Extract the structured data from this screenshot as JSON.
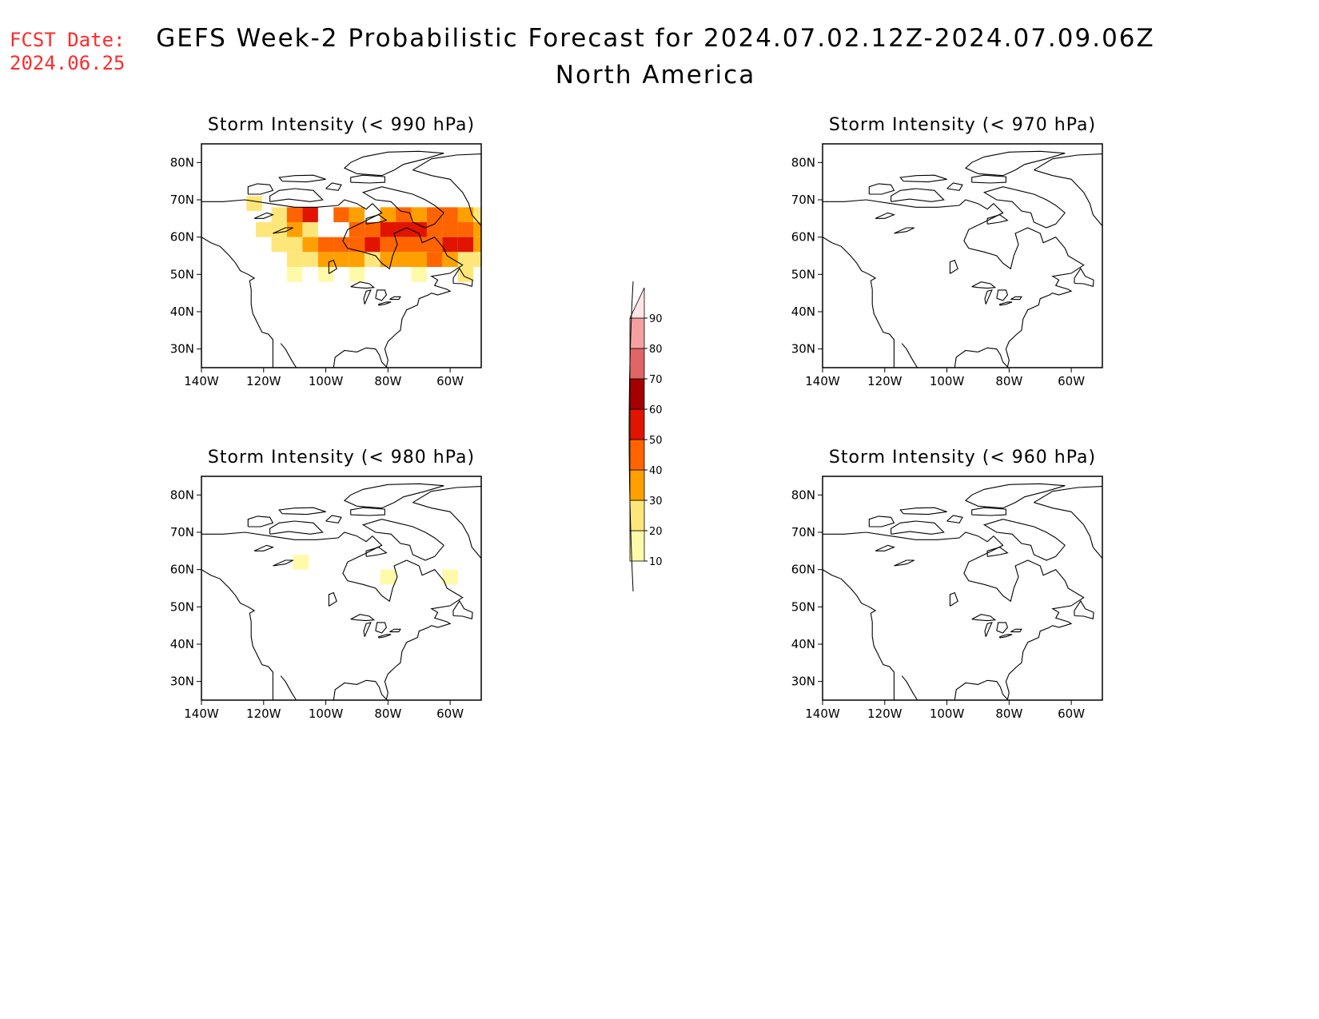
{
  "forecast_date": {
    "label": "FCST Date:",
    "value": "2024.06.25"
  },
  "title": "GEFS Week-2 Probabilistic Forecast for 2024.07.02.12Z-2024.07.09.06Z",
  "subtitle": "North America",
  "map": {
    "lon_ticks": [
      "140W",
      "120W",
      "100W",
      "80W",
      "60W"
    ],
    "lat_ticks": [
      "80N",
      "70N",
      "60N",
      "50N",
      "40N",
      "30N"
    ],
    "lon_range": [
      -140,
      -50
    ],
    "lat_range": [
      25,
      85
    ]
  },
  "panels": [
    {
      "id": "990",
      "title": "Storm Intensity (< 990 hPa)",
      "cells": [
        {
          "lat": 69,
          "lon": -123,
          "p": 25
        },
        {
          "lat": 66,
          "lon": -115,
          "p": 20
        },
        {
          "lat": 66,
          "lon": -110,
          "p": 45
        },
        {
          "lat": 66,
          "lon": -105,
          "p": 55
        },
        {
          "lat": 66,
          "lon": -95,
          "p": 45
        },
        {
          "lat": 66,
          "lon": -90,
          "p": 35
        },
        {
          "lat": 66,
          "lon": -80,
          "p": 35
        },
        {
          "lat": 66,
          "lon": -75,
          "p": 45
        },
        {
          "lat": 66,
          "lon": -70,
          "p": 35
        },
        {
          "lat": 66,
          "lon": -65,
          "p": 45
        },
        {
          "lat": 66,
          "lon": -60,
          "p": 45
        },
        {
          "lat": 66,
          "lon": -55,
          "p": 35
        },
        {
          "lat": 66,
          "lon": -50,
          "p": 25
        },
        {
          "lat": 62,
          "lon": -120,
          "p": 20
        },
        {
          "lat": 62,
          "lon": -115,
          "p": 25
        },
        {
          "lat": 62,
          "lon": -110,
          "p": 35
        },
        {
          "lat": 62,
          "lon": -105,
          "p": 25
        },
        {
          "lat": 62,
          "lon": -90,
          "p": 45
        },
        {
          "lat": 62,
          "lon": -85,
          "p": 45
        },
        {
          "lat": 62,
          "lon": -80,
          "p": 55
        },
        {
          "lat": 62,
          "lon": -75,
          "p": 55
        },
        {
          "lat": 62,
          "lon": -70,
          "p": 55
        },
        {
          "lat": 62,
          "lon": -65,
          "p": 45
        },
        {
          "lat": 62,
          "lon": -60,
          "p": 45
        },
        {
          "lat": 62,
          "lon": -55,
          "p": 45
        },
        {
          "lat": 62,
          "lon": -50,
          "p": 35
        },
        {
          "lat": 58,
          "lon": -115,
          "p": 20
        },
        {
          "lat": 58,
          "lon": -110,
          "p": 25
        },
        {
          "lat": 58,
          "lon": -105,
          "p": 35
        },
        {
          "lat": 58,
          "lon": -100,
          "p": 45
        },
        {
          "lat": 58,
          "lon": -95,
          "p": 45
        },
        {
          "lat": 58,
          "lon": -90,
          "p": 45
        },
        {
          "lat": 58,
          "lon": -85,
          "p": 55
        },
        {
          "lat": 58,
          "lon": -80,
          "p": 45
        },
        {
          "lat": 58,
          "lon": -75,
          "p": 45
        },
        {
          "lat": 58,
          "lon": -70,
          "p": 45
        },
        {
          "lat": 58,
          "lon": -65,
          "p": 45
        },
        {
          "lat": 58,
          "lon": -60,
          "p": 55
        },
        {
          "lat": 58,
          "lon": -55,
          "p": 55
        },
        {
          "lat": 58,
          "lon": -50,
          "p": 35
        },
        {
          "lat": 54,
          "lon": -110,
          "p": 20
        },
        {
          "lat": 54,
          "lon": -105,
          "p": 25
        },
        {
          "lat": 54,
          "lon": -100,
          "p": 35
        },
        {
          "lat": 54,
          "lon": -95,
          "p": 35
        },
        {
          "lat": 54,
          "lon": -90,
          "p": 35
        },
        {
          "lat": 54,
          "lon": -85,
          "p": 25
        },
        {
          "lat": 54,
          "lon": -80,
          "p": 35
        },
        {
          "lat": 54,
          "lon": -75,
          "p": 35
        },
        {
          "lat": 54,
          "lon": -70,
          "p": 35
        },
        {
          "lat": 54,
          "lon": -65,
          "p": 45
        },
        {
          "lat": 54,
          "lon": -60,
          "p": 35
        },
        {
          "lat": 54,
          "lon": -55,
          "p": 25
        },
        {
          "lat": 54,
          "lon": -50,
          "p": 20
        },
        {
          "lat": 50,
          "lon": -110,
          "p": 15
        },
        {
          "lat": 50,
          "lon": -100,
          "p": 15
        },
        {
          "lat": 50,
          "lon": -90,
          "p": 15
        },
        {
          "lat": 50,
          "lon": -70,
          "p": 15
        },
        {
          "lat": 50,
          "lon": -55,
          "p": 20
        }
      ]
    },
    {
      "id": "970",
      "title": "Storm Intensity (< 970 hPa)",
      "cells": []
    },
    {
      "id": "980",
      "title": "Storm Intensity (< 980 hPa)",
      "cells": [
        {
          "lat": 62,
          "lon": -108,
          "p": 15
        },
        {
          "lat": 58,
          "lon": -80,
          "p": 15
        },
        {
          "lat": 58,
          "lon": -60,
          "p": 15
        }
      ]
    },
    {
      "id": "960",
      "title": "Storm Intensity (< 960 hPa)",
      "cells": []
    }
  ],
  "colorbar": {
    "labels": [
      "10",
      "20",
      "30",
      "40",
      "50",
      "60",
      "70",
      "80",
      "90"
    ],
    "colors": [
      "#fffaaa",
      "#ffe67a",
      "#ffa000",
      "#ff6400",
      "#e11400",
      "#a50000",
      "#e06666",
      "#f5a0a0",
      "#ffe6e6"
    ]
  }
}
